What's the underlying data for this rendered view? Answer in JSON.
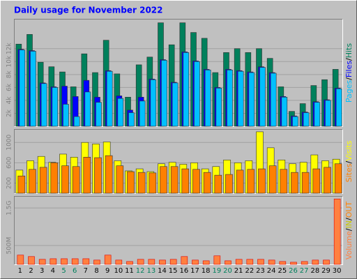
{
  "chart_data": {
    "type": "bar",
    "title": "Daily usage for November 2022",
    "title_color": "#0000ff",
    "categories": [
      "1",
      "2",
      "3",
      "4",
      "5",
      "6",
      "7",
      "8",
      "9",
      "10",
      "11",
      "12",
      "13",
      "14",
      "15",
      "16",
      "17",
      "18",
      "19",
      "20",
      "21",
      "22",
      "23",
      "24",
      "25",
      "26",
      "27",
      "28",
      "29",
      "30"
    ],
    "category_colors": [
      "#000000",
      "#000000",
      "#000000",
      "#000000",
      "#00805c",
      "#00805c",
      "#000000",
      "#000000",
      "#000000",
      "#000000",
      "#000000",
      "#00805c",
      "#00805c",
      "#000000",
      "#000000",
      "#000000",
      "#000000",
      "#000000",
      "#00805c",
      "#00805c",
      "#000000",
      "#000000",
      "#000000",
      "#000000",
      "#000000",
      "#00805c",
      "#00805c",
      "#000000",
      "#000000",
      "#000000"
    ],
    "legend_separator": "/",
    "panels": [
      {
        "ylim": [
          0,
          16500
        ],
        "grid": true,
        "yticks": [
          {
            "value": 2000,
            "label": "2k"
          },
          {
            "value": 4000,
            "label": "4k"
          },
          {
            "value": 6000,
            "label": "6k"
          },
          {
            "value": 8000,
            "label": "8k"
          },
          {
            "value": 10000,
            "label": "10k"
          },
          {
            "value": 12000,
            "label": "12k"
          }
        ],
        "series": [
          {
            "name": "Hits",
            "color": "#00805c",
            "values": [
              12700,
              14200,
              9900,
              9200,
              8400,
              6100,
              11200,
              8300,
              13300,
              8100,
              4500,
              9500,
              10700,
              16000,
              12600,
              16000,
              14500,
              13600,
              8300,
              11400,
              12000,
              11400,
              12000,
              10500,
              6100,
              2300,
              3500,
              6300,
              7200,
              8800
            ]
          },
          {
            "name": "Files",
            "color": "#0000ff",
            "values": [
              11900,
              11700,
              6700,
              6100,
              6200,
              4600,
              7100,
              4500,
              8600,
              4700,
              2500,
              4500,
              7300,
              10300,
              6800,
              11500,
              10100,
              8800,
              6000,
              8800,
              8600,
              8400,
              9200,
              8300,
              4600,
              1600,
              2200,
              3800,
              4100,
              5900
            ]
          },
          {
            "name": "Pages",
            "color": "#00c0ff",
            "values": [
              11800,
              11600,
              6600,
              6000,
              3400,
              1500,
              5300,
              3700,
              8500,
              4300,
              2100,
              3900,
              7200,
              10200,
              6700,
              11400,
              10000,
              8700,
              5900,
              8700,
              8500,
              8300,
              9100,
              8200,
              4500,
              1500,
              2100,
              3700,
              4000,
              5800
            ]
          }
        ]
      },
      {
        "ylim": [
          0,
          1250
        ],
        "grid": true,
        "yticks": [
          200,
          600,
          1000
        ],
        "series": [
          {
            "name": "Visits",
            "color": "#ffff00",
            "values": [
              455,
              640,
              725,
              610,
              770,
              710,
              1000,
              970,
              1010,
              640,
              440,
              480,
              425,
              580,
              610,
              570,
              600,
              480,
              525,
              655,
              600,
              640,
              1210,
              895,
              655,
              580,
              610,
              755,
              640,
              670
            ]
          },
          {
            "name": "Sites",
            "color": "#ff8000",
            "values": [
              340,
              470,
              510,
              600,
              540,
              525,
              710,
              700,
              740,
              540,
              425,
              410,
              400,
              525,
              525,
              480,
              470,
              410,
              355,
              370,
              455,
              470,
              480,
              540,
              470,
              410,
              410,
              480,
              510,
              580
            ]
          }
        ]
      },
      {
        "ylim": [
          0,
          1800
        ],
        "grid": true,
        "yticks": [
          {
            "value": 500,
            "label": "500M"
          },
          {
            "value": 1500,
            "label": "1.5G"
          }
        ],
        "series": [
          {
            "name": "Volume",
            "color": "#ff8040",
            "edge_color": "#e00000",
            "values": [
              246,
              208,
              133,
              150,
              150,
              150,
              150,
              114,
              246,
              114,
              76,
              133,
              133,
              114,
              133,
              208,
              114,
              95,
              227,
              95,
              133,
              133,
              133,
              114,
              76,
              57,
              76,
              114,
              114,
              1740
            ]
          }
        ],
        "extra_legend": [
          {
            "name": "IN",
            "color": "#c8c800"
          },
          {
            "name": "OUT",
            "color": "#ff8000"
          }
        ]
      }
    ]
  }
}
